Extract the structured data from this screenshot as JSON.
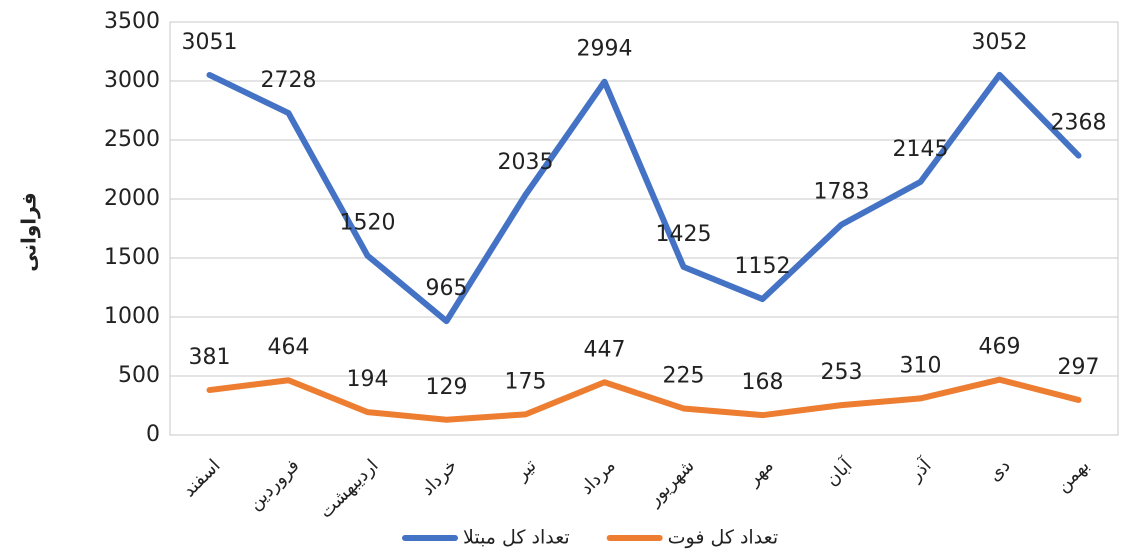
{
  "chart_data": {
    "type": "line",
    "y_label": "فراوانی",
    "categories": [
      "اسفند",
      "فروردین",
      "اردیبهشت",
      "خرداد",
      "تیر",
      "مرداد",
      "شهریور",
      "مهر",
      "آبان",
      "آذر",
      "دی",
      "بهمن"
    ],
    "series": [
      {
        "name": "تعداد کل مبتلا",
        "color": "#4472c4",
        "values": [
          3051,
          2728,
          1520,
          965,
          2035,
          2994,
          1425,
          1152,
          1783,
          2145,
          3052,
          2368
        ]
      },
      {
        "name": "تعداد کل فوت",
        "color": "#ed7d31",
        "values": [
          381,
          464,
          194,
          129,
          175,
          447,
          225,
          168,
          253,
          310,
          469,
          297
        ]
      }
    ],
    "ylim": [
      0,
      3500
    ],
    "yticks": [
      0,
      500,
      1000,
      1500,
      2000,
      2500,
      3000,
      3500
    ],
    "grid": true,
    "legend": "bottom"
  }
}
